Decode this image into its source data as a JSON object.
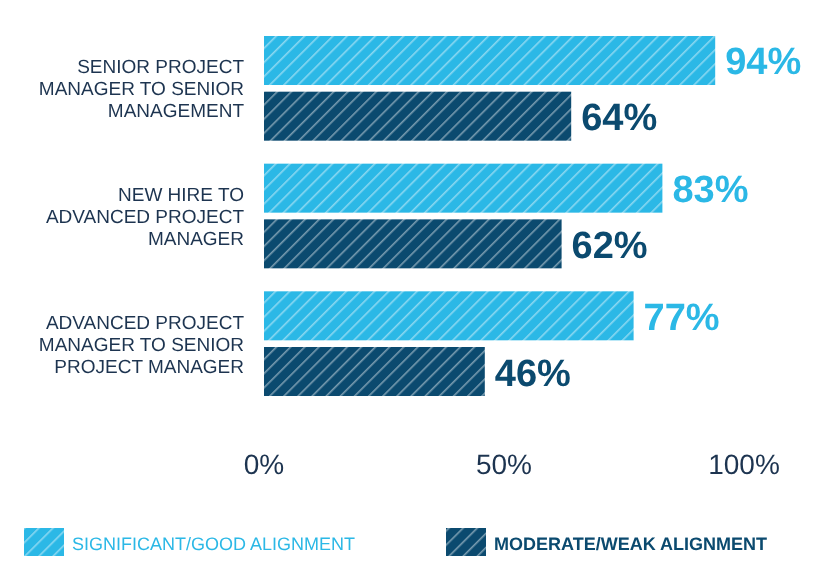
{
  "chart_data": {
    "type": "bar",
    "orientation": "horizontal",
    "categories": [
      "SENIOR PROJECT MANAGER TO SENIOR MANAGEMENT",
      "NEW HIRE TO ADVANCED PROJECT MANAGER",
      "ADVANCED PROJECT MANAGER TO SENIOR PROJECT MANAGER"
    ],
    "series": [
      {
        "name": "SIGNIFICANT/GOOD ALIGNMENT",
        "color": "#2bb8e6",
        "values": [
          94,
          83,
          77
        ],
        "value_labels": [
          "94%",
          "83%",
          "77%"
        ]
      },
      {
        "name": "MODERATE/WEAK ALIGNMENT",
        "color": "#0b4a6f",
        "values": [
          64,
          62,
          46
        ],
        "value_labels": [
          "64%",
          "62%",
          "46%"
        ]
      }
    ],
    "xlim": [
      0,
      100
    ],
    "xticks": [
      {
        "value": 0,
        "label": "0%"
      },
      {
        "value": 50,
        "label": "50%"
      },
      {
        "value": 100,
        "label": "100%"
      }
    ],
    "legend": "bottom"
  }
}
